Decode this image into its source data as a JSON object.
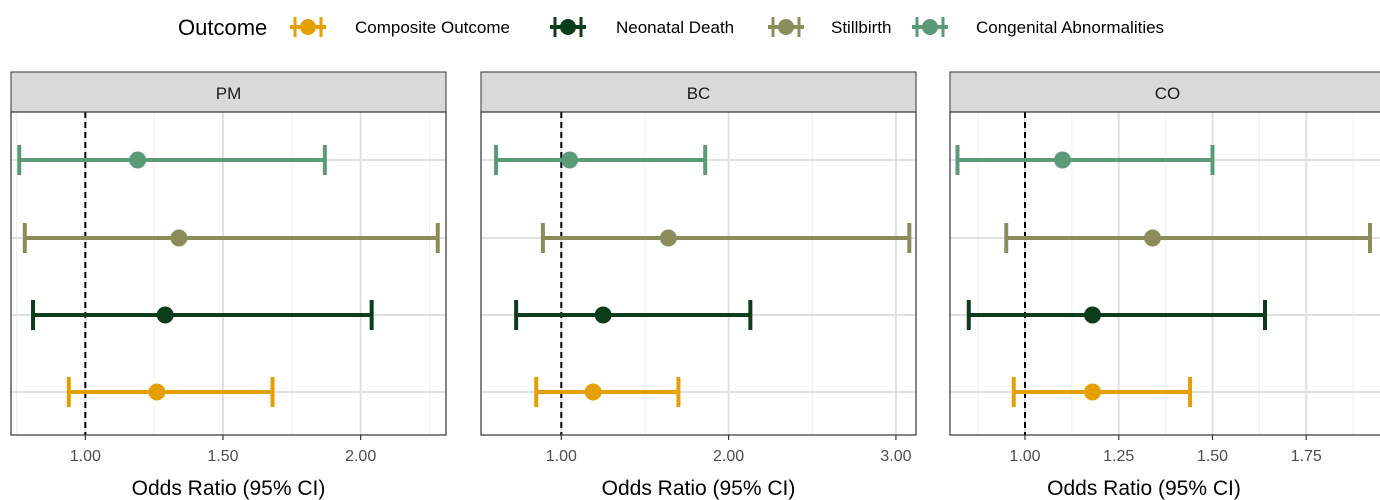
{
  "legend": {
    "title": "Outcome",
    "items": [
      {
        "label": "Composite Outcome",
        "color": "#E69F00"
      },
      {
        "label": "Neonatal Death",
        "color": "#0B3D1A"
      },
      {
        "label": "Stillbirth",
        "color": "#8C8C5A"
      },
      {
        "label": "Congenital Abnormalities",
        "color": "#5A9A78"
      }
    ]
  },
  "chart_data": [
    {
      "type": "scatter",
      "facet": "PM",
      "xlabel": "Odds Ratio (95% CI)",
      "xlim": [
        0.73,
        2.31
      ],
      "xticks": [
        1.0,
        1.5,
        2.0
      ],
      "xtick_labels": [
        "1.00",
        "1.50",
        "2.00"
      ],
      "reference_line": 1.0,
      "series": [
        {
          "name": "Composite Outcome",
          "estimate": 1.26,
          "lower": 0.94,
          "upper": 1.68
        },
        {
          "name": "Neonatal Death",
          "estimate": 1.29,
          "lower": 0.81,
          "upper": 2.04
        },
        {
          "name": "Stillbirth",
          "estimate": 1.34,
          "lower": 0.78,
          "upper": 2.28
        },
        {
          "name": "Congenital Abnormalities",
          "estimate": 1.19,
          "lower": 0.76,
          "upper": 1.87
        }
      ]
    },
    {
      "type": "scatter",
      "facet": "BC",
      "xlabel": "Odds Ratio (95% CI)",
      "xlim": [
        0.52,
        3.12
      ],
      "xticks": [
        1.0,
        2.0,
        3.0
      ],
      "xtick_labels": [
        "1.00",
        "2.00",
        "3.00"
      ],
      "reference_line": 1.0,
      "series": [
        {
          "name": "Composite Outcome",
          "estimate": 1.19,
          "lower": 0.85,
          "upper": 1.7
        },
        {
          "name": "Neonatal Death",
          "estimate": 1.25,
          "lower": 0.73,
          "upper": 2.13
        },
        {
          "name": "Stillbirth",
          "estimate": 1.64,
          "lower": 0.89,
          "upper": 3.08
        },
        {
          "name": "Congenital Abnormalities",
          "estimate": 1.05,
          "lower": 0.61,
          "upper": 1.86
        }
      ]
    },
    {
      "type": "scatter",
      "facet": "CO",
      "xlabel": "Odds Ratio (95% CI)",
      "xlim": [
        0.8,
        1.96
      ],
      "xticks": [
        1.0,
        1.25,
        1.5,
        1.75
      ],
      "xtick_labels": [
        "1.00",
        "1.25",
        "1.50",
        "1.75"
      ],
      "reference_line": 1.0,
      "series": [
        {
          "name": "Composite Outcome",
          "estimate": 1.18,
          "lower": 0.97,
          "upper": 1.44
        },
        {
          "name": "Neonatal Death",
          "estimate": 1.18,
          "lower": 0.85,
          "upper": 1.64
        },
        {
          "name": "Stillbirth",
          "estimate": 1.34,
          "lower": 0.95,
          "upper": 1.92
        },
        {
          "name": "Congenital Abnormalities",
          "estimate": 1.1,
          "lower": 0.82,
          "upper": 1.5
        }
      ]
    }
  ]
}
